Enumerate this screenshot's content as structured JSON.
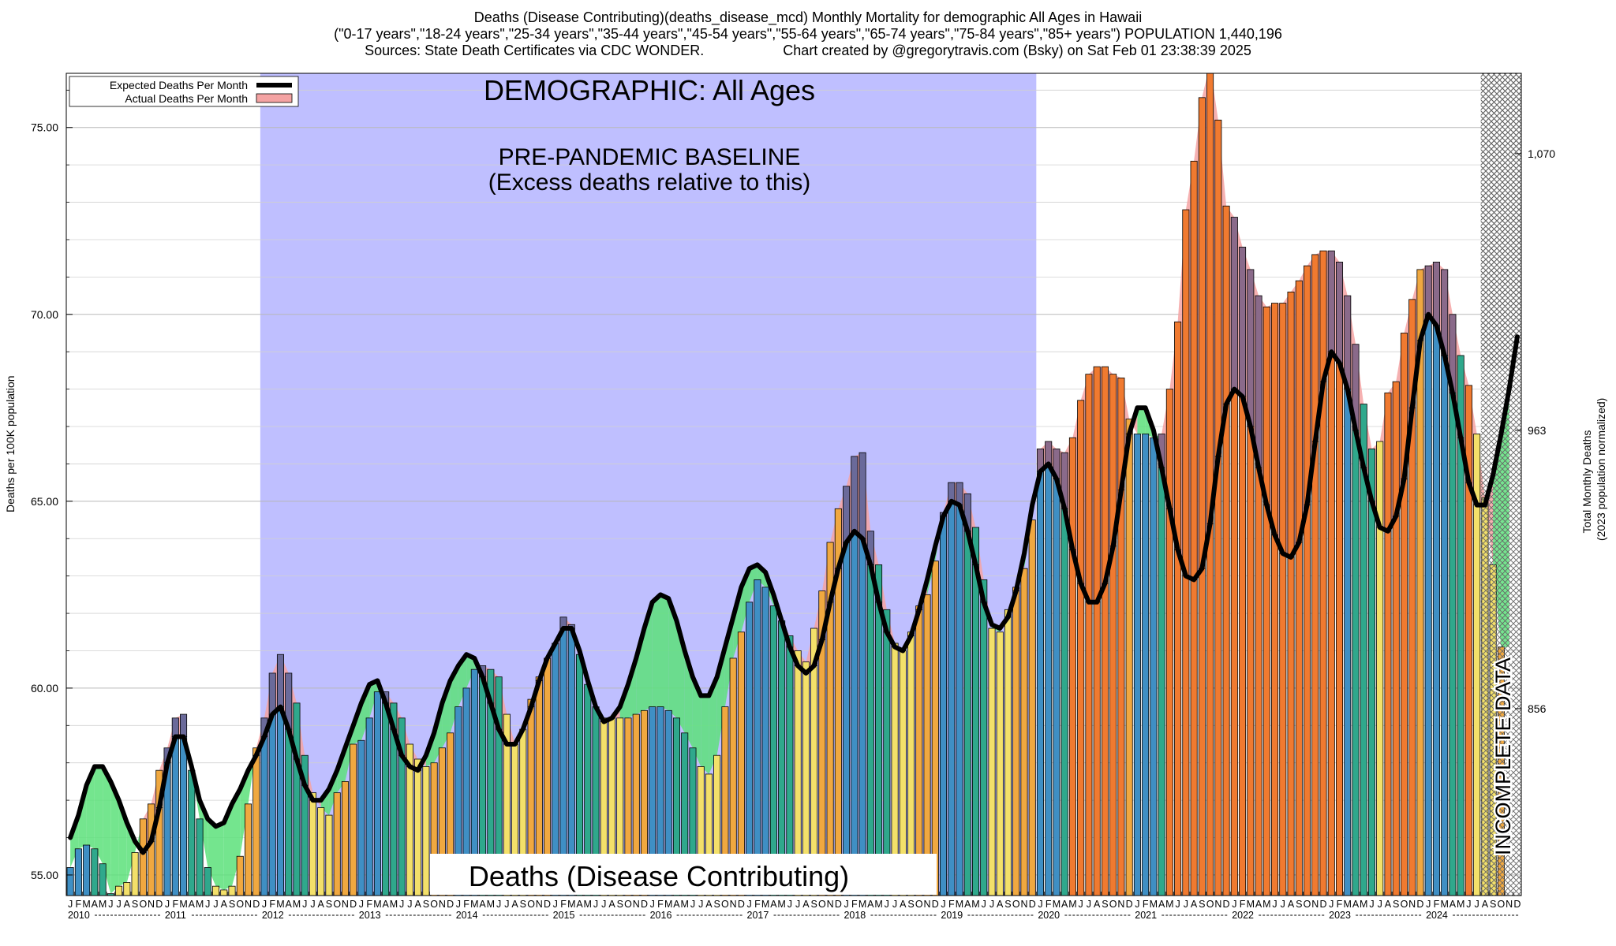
{
  "header": {
    "line1": "Deaths (Disease Contributing)(deaths_disease_mcd) Monthly Mortality for demographic All Ages in Hawaii",
    "line2": "(\"0-17 years\",\"18-24 years\",\"25-34 years\",\"35-44 years\",\"45-54 years\",\"55-64 years\",\"65-74 years\",\"75-84 years\",\"85+ years\") POPULATION 1,440,196",
    "line3_left": "Sources: State Death Certificates via CDC WONDER.",
    "line3_right": "Chart created by @gregorytravis.com (Bsky) on Sat Feb 01 23:38:39 2025"
  },
  "labels": {
    "demographic": "DEMOGRAPHIC: All Ages",
    "baseline_line1": "PRE-PANDEMIC BASELINE",
    "baseline_line2": "(Excess deaths relative to this)",
    "metric": "Deaths (Disease Contributing)",
    "incomplete": "INCOMPLETE DATA",
    "ylabel_left": "Deaths per 100K population",
    "ylabel_right_1": "Total Monthly Deaths",
    "ylabel_right_2": "(2023 population normalized)"
  },
  "colors": {
    "baseline_region": "#bfbfff",
    "expected_line": "#000000",
    "actual_fill": "#f4a3a3",
    "deficit_fill": "#5ce07a",
    "bar_winter": "#3f8fc4",
    "bar_spring": "#2fa88c",
    "bar_summer": "#f3e06a",
    "bar_fall": "#f0a840",
    "bar_covid": "#f07a30"
  },
  "chart_data": {
    "type": "bar",
    "title": "Deaths (Disease Contributing)(deaths_disease_mcd) Monthly Mortality for demographic All Ages in Hawaii",
    "ylabel": "Deaths per 100K population",
    "ylabel_right": "Total Monthly Deaths (2023 population normalized)",
    "ylim": [
      54.45,
      76.45
    ],
    "yticks_left": [
      55.0,
      60.0,
      65.0,
      70.0,
      75.0
    ],
    "yticks_left_labels": [
      "55.00",
      "60.00",
      "65.00",
      "70.00",
      "75.00"
    ],
    "yticks_right": [
      {
        "value": 59.45,
        "label": "856"
      },
      {
        "value": 66.9,
        "label": "963"
      },
      {
        "value": 74.3,
        "label": "1,070"
      }
    ],
    "years": [
      "2010",
      "2011",
      "2012",
      "2013",
      "2014",
      "2015",
      "2016",
      "2017",
      "2018",
      "2019",
      "2020",
      "2021",
      "2022",
      "2023",
      "2024"
    ],
    "month_letters": [
      "J",
      "F",
      "M",
      "A",
      "M",
      "J",
      "J",
      "A",
      "S",
      "O",
      "N",
      "D"
    ],
    "baseline_years": [
      "2012",
      "2013",
      "2014",
      "2015",
      "2016",
      "2017",
      "2018",
      "2019"
    ],
    "incomplete_from": "2024-08",
    "legend": [
      {
        "label": "Expected Deaths Per Month",
        "kind": "line"
      },
      {
        "label": "Actual Deaths Per Month",
        "kind": "fill"
      }
    ],
    "legend_position": "top-left",
    "series": [
      {
        "name": "Actual Deaths Per Month",
        "values": [
          55.2,
          55.7,
          55.8,
          55.7,
          55.3,
          54.5,
          54.7,
          54.8,
          55.6,
          56.5,
          56.9,
          57.8,
          58.4,
          59.2,
          59.3,
          57.8,
          56.5,
          55.2,
          54.7,
          54.6,
          54.7,
          55.5,
          56.9,
          58.4,
          59.2,
          60.4,
          60.9,
          60.4,
          59.6,
          58.2,
          57.2,
          56.8,
          56.6,
          57.2,
          57.5,
          58.5,
          58.6,
          59.2,
          59.9,
          59.9,
          59.6,
          59.2,
          58.5,
          58.1,
          57.9,
          58.0,
          58.4,
          58.8,
          59.5,
          60.0,
          60.5,
          60.6,
          60.5,
          60.3,
          59.3,
          58.5,
          58.9,
          59.7,
          60.3,
          60.8,
          61.2,
          61.9,
          61.7,
          60.9,
          60.1,
          59.5,
          59.2,
          59.2,
          59.2,
          59.2,
          59.3,
          59.4,
          59.5,
          59.5,
          59.4,
          59.2,
          58.8,
          58.4,
          57.9,
          57.7,
          58.2,
          59.5,
          60.8,
          61.5,
          62.3,
          62.9,
          62.7,
          62.2,
          61.8,
          61.4,
          61.0,
          60.7,
          61.6,
          62.6,
          63.9,
          64.8,
          65.4,
          66.2,
          66.3,
          64.2,
          63.3,
          62.1,
          61.2,
          61.0,
          61.5,
          62.2,
          62.5,
          63.4,
          64.7,
          65.5,
          65.5,
          65.2,
          64.3,
          62.9,
          61.6,
          61.5,
          62.1,
          62.7,
          63.2,
          64.5,
          66.4,
          66.6,
          66.4,
          66.3,
          66.7,
          67.7,
          68.4,
          68.6,
          68.6,
          68.4,
          68.3,
          67.2,
          66.8,
          66.8,
          66.7,
          66.8,
          68.0,
          69.8,
          72.8,
          74.1,
          75.8,
          76.7,
          75.2,
          72.9,
          72.6,
          71.8,
          71.2,
          70.5,
          70.2,
          70.3,
          70.3,
          70.6,
          70.9,
          71.3,
          71.6,
          71.7,
          71.7,
          71.4,
          70.5,
          69.2,
          67.6,
          66.4,
          66.6,
          67.9,
          68.2,
          69.5,
          70.4,
          71.2,
          71.3,
          71.4,
          71.2,
          70.0,
          68.9,
          68.1,
          66.8,
          65.1,
          63.3,
          61.1
        ]
      },
      {
        "name": "Expected Deaths Per Month",
        "values": [
          56.0,
          56.6,
          57.4,
          57.9,
          57.9,
          57.5,
          57.0,
          56.4,
          55.9,
          55.6,
          55.9,
          56.8,
          58.0,
          58.7,
          58.7,
          57.9,
          57.0,
          56.5,
          56.3,
          56.4,
          56.9,
          57.3,
          57.8,
          58.2,
          58.7,
          59.3,
          59.5,
          58.9,
          58.1,
          57.4,
          57.0,
          57.0,
          57.3,
          57.8,
          58.4,
          59.0,
          59.6,
          60.1,
          60.2,
          59.6,
          58.9,
          58.2,
          57.9,
          57.8,
          58.2,
          58.8,
          59.6,
          60.2,
          60.6,
          60.9,
          60.8,
          60.3,
          59.6,
          58.9,
          58.5,
          58.5,
          58.9,
          59.5,
          60.2,
          60.8,
          61.2,
          61.6,
          61.6,
          61.0,
          60.2,
          59.5,
          59.1,
          59.2,
          59.5,
          60.1,
          60.8,
          61.6,
          62.3,
          62.5,
          62.4,
          61.8,
          61.0,
          60.3,
          59.8,
          59.8,
          60.3,
          61.1,
          61.9,
          62.7,
          63.2,
          63.3,
          63.1,
          62.5,
          61.8,
          61.1,
          60.6,
          60.4,
          60.6,
          61.3,
          62.3,
          63.2,
          63.9,
          64.2,
          64.0,
          63.3,
          62.3,
          61.5,
          61.1,
          61.0,
          61.4,
          62.1,
          62.9,
          63.8,
          64.6,
          65.0,
          64.9,
          64.2,
          63.3,
          62.3,
          61.7,
          61.6,
          61.9,
          62.6,
          63.6,
          64.9,
          65.8,
          66.0,
          65.6,
          64.8,
          63.7,
          62.8,
          62.3,
          62.3,
          62.8,
          63.8,
          65.3,
          66.8,
          67.5,
          67.5,
          66.9,
          65.9,
          64.8,
          63.7,
          63.0,
          62.9,
          63.2,
          64.4,
          66.2,
          67.6,
          68.0,
          67.8,
          67.0,
          65.9,
          64.9,
          64.1,
          63.6,
          63.5,
          63.9,
          64.9,
          66.6,
          68.2,
          69.0,
          68.7,
          68.0,
          66.9,
          65.9,
          65.0,
          64.3,
          64.2,
          64.6,
          65.6,
          67.5,
          69.3,
          70.0,
          69.7,
          68.9,
          67.9,
          66.7,
          65.5,
          64.9,
          64.9,
          65.7,
          66.8,
          68.0,
          69.4
        ]
      }
    ]
  }
}
